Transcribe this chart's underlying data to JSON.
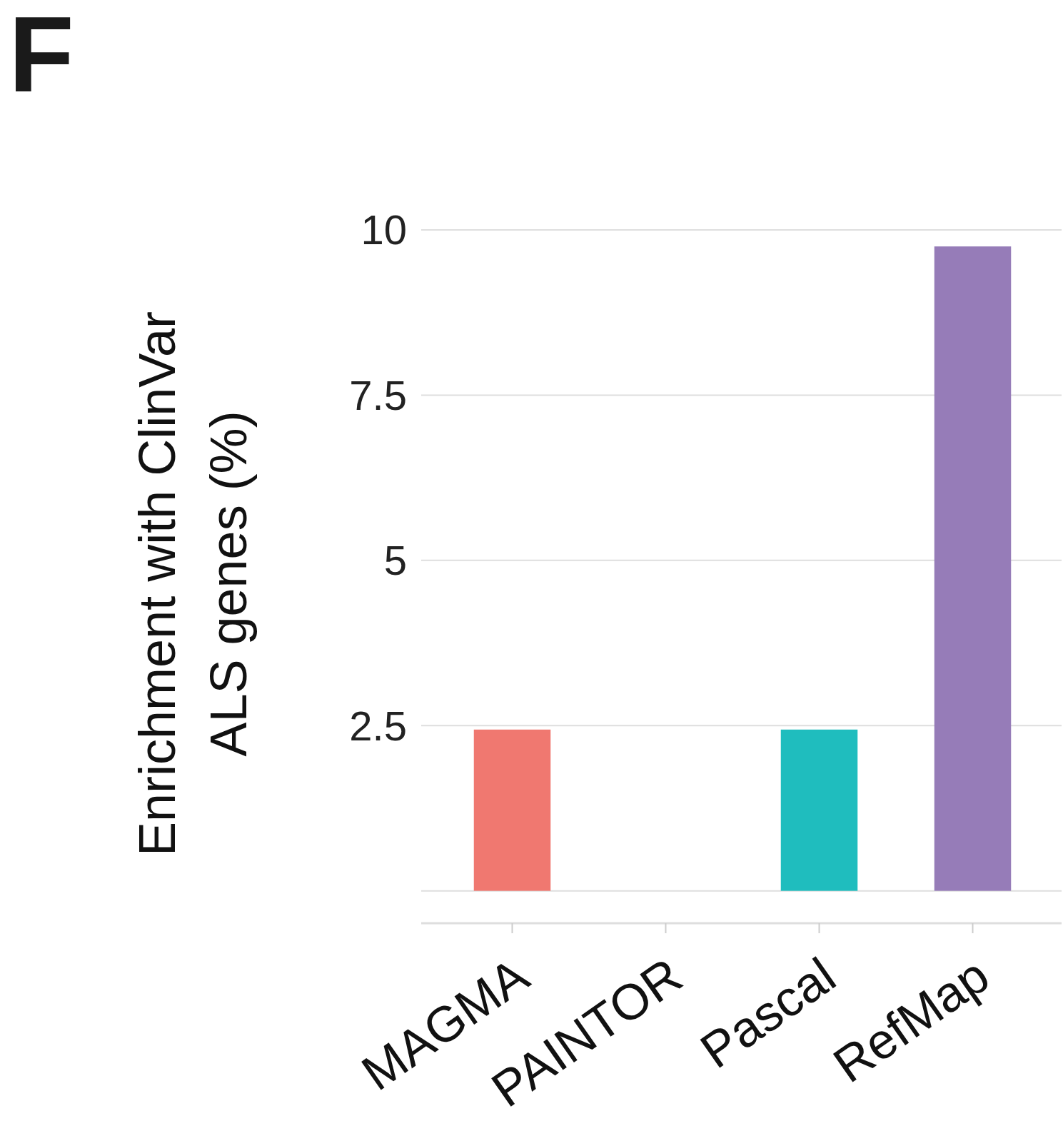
{
  "chart_data": {
    "type": "bar",
    "ylabel": "Enrichment with ClinVar\nALS genes (%)",
    "annotations": [
      "F"
    ],
    "categories": [
      "MAGMA",
      "PAINTOR",
      "Pascal",
      "RefMap"
    ],
    "values": [
      2.44,
      0,
      2.44,
      9.75
    ],
    "colors": [
      "#f07870",
      "#7cae00",
      "#1fbdbe",
      "#967cb8"
    ],
    "ylim": [
      -0.49,
      10
    ],
    "yticks": [
      {
        "value": 0,
        "label": null
      },
      2.5,
      5,
      7.5,
      10
    ],
    "grid": "y"
  }
}
